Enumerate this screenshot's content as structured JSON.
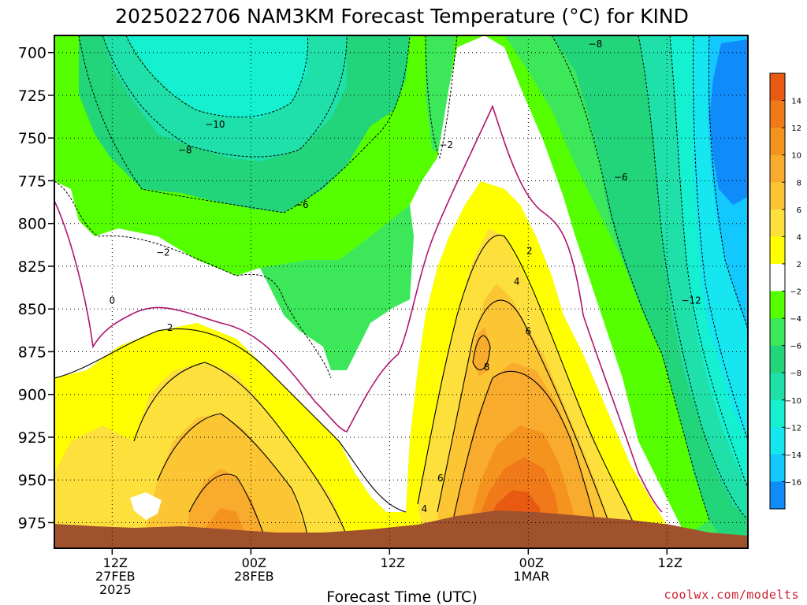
{
  "chart_data": {
    "type": "heatmap",
    "title": "2025022706 NAM3KM Forecast Temperature (°C) for KIND",
    "xlabel": "Forecast Time (UTC)",
    "ylabel": "",
    "y_axis": {
      "ticks": [
        700,
        725,
        750,
        775,
        800,
        825,
        850,
        875,
        900,
        925,
        950,
        975
      ],
      "ylim": [
        690,
        990
      ],
      "inverted": true
    },
    "x_axis": {
      "tick_hours": [
        5,
        17,
        29,
        41,
        53
      ],
      "tick_labels": [
        {
          "line1": "12Z",
          "line2": "27FEB",
          "line3": "2025"
        },
        {
          "line1": "00Z",
          "line2": "28FEB",
          "line3": ""
        },
        {
          "line1": "12Z",
          "line2": "",
          "line3": ""
        },
        {
          "line1": "00Z",
          "line2": "1MAR",
          "line3": ""
        },
        {
          "line1": "12Z",
          "line2": "",
          "line3": ""
        }
      ],
      "xlim_hours": [
        0,
        60
      ]
    },
    "grid": "dotted",
    "colorbar": {
      "placement": "right",
      "labels": [
        "14",
        "12",
        "10",
        "8",
        "6",
        "4",
        "2",
        "−2",
        "−4",
        "−6",
        "−8",
        "−10",
        "−12",
        "−14",
        "−16"
      ],
      "colors": [
        "#e85a12",
        "#f07a1a",
        "#f5931f",
        "#f8ab2c",
        "#fbc534",
        "#fde03c",
        "#ffff00",
        "#ffffff",
        "#55ff00",
        "#3ce85a",
        "#22d47a",
        "#1ee0a8",
        "#14f0d0",
        "#16e6f0",
        "#12c8ff",
        "#108cfa"
      ]
    },
    "contour_labels": [
      {
        "text": "−10",
        "hour": 13.9,
        "p": 742
      },
      {
        "text": "−8",
        "hour": 11.3,
        "p": 757
      },
      {
        "text": "−6",
        "hour": 21.4,
        "p": 789
      },
      {
        "text": "−2",
        "hour": 9.4,
        "p": 817
      },
      {
        "text": "0",
        "hour": 5.0,
        "p": 845
      },
      {
        "text": "2",
        "hour": 10.0,
        "p": 861
      },
      {
        "text": "−2",
        "hour": 33.9,
        "p": 754
      },
      {
        "text": "2",
        "hour": 41.1,
        "p": 816
      },
      {
        "text": "4",
        "hour": 40.0,
        "p": 834
      },
      {
        "text": "6",
        "hour": 41.0,
        "p": 863
      },
      {
        "text": "8",
        "hour": 37.4,
        "p": 884
      },
      {
        "text": "6",
        "hour": 33.4,
        "p": 949
      },
      {
        "text": "4",
        "hour": 32.0,
        "p": 967
      },
      {
        "text": "−8",
        "hour": 46.8,
        "p": 695
      },
      {
        "text": "−6",
        "hour": 49.0,
        "p": 773
      },
      {
        "text": "−12",
        "hour": 55.1,
        "p": 845
      }
    ],
    "credit": "coolwx.com/modelts"
  }
}
